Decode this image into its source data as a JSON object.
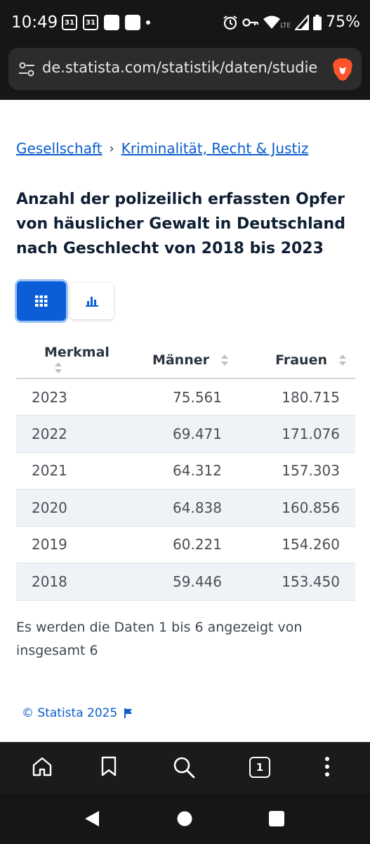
{
  "status": {
    "time": "10:49",
    "cal1": "31",
    "cal2": "31",
    "battery": "75%",
    "lte": "LTE"
  },
  "browser": {
    "url": "de.statista.com/statistik/daten/studie",
    "tabs_count": "1"
  },
  "breadcrumb": {
    "item1": "Gesellschaft",
    "separator": "›",
    "item2": "Kriminalität, Recht & Justiz"
  },
  "title": "Anzahl der polizeilich erfassten Opfer von häuslicher Gewalt in Deutschland nach Geschlecht von 2018 bis 2023",
  "table": {
    "headers": [
      "Merkmal",
      "Männer",
      "Frauen"
    ],
    "rows": [
      [
        "2023",
        "75.561",
        "180.715"
      ],
      [
        "2022",
        "69.471",
        "171.076"
      ],
      [
        "2021",
        "64.312",
        "157.303"
      ],
      [
        "2020",
        "64.838",
        "160.856"
      ],
      [
        "2019",
        "60.221",
        "154.260"
      ],
      [
        "2018",
        "59.446",
        "153.450"
      ]
    ]
  },
  "info": "Es werden die Daten 1 bis 6 angezeigt von insgesamt 6",
  "copyright": "© Statista 2025",
  "colors": {
    "accent": "#0b5ed7",
    "link": "#0a5ccc",
    "dark": "#161616"
  },
  "icons": [
    "alarm-icon",
    "key-icon",
    "wifi-icon",
    "signal-icon",
    "battery-icon",
    "tune-icon",
    "brave-lion-icon",
    "grid-table-icon",
    "bar-chart-icon",
    "sort-icon",
    "flag-icon",
    "home-icon",
    "bookmark-icon",
    "search-icon",
    "tabs-icon",
    "more-icon",
    "back-icon",
    "home-circle-icon",
    "recents-icon"
  ]
}
